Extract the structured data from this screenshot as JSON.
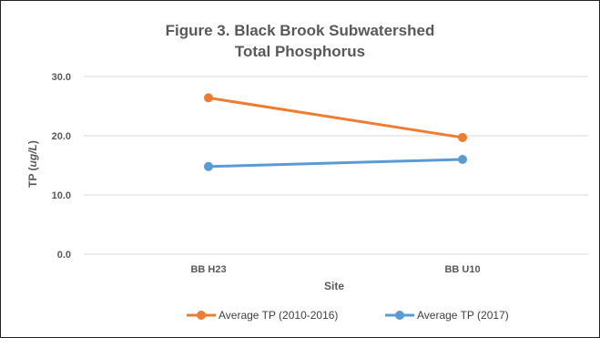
{
  "chart_data": {
    "type": "line",
    "title_line1": "Figure 3. Black Brook Subwatershed",
    "title_line2": "Total Phosphorus",
    "categories": [
      "BB H23",
      "BB U10"
    ],
    "series": [
      {
        "name": "Average TP (2010-2016)",
        "values": [
          26.4,
          19.7
        ],
        "color": "#ED7D31"
      },
      {
        "name": "Average TP (2017)",
        "values": [
          14.8,
          16.0
        ],
        "color": "#5B9BD5"
      }
    ],
    "xlabel": "Site",
    "ylabel_prefix": "TP (",
    "ylabel_unit": "ug/L",
    "ylabel_suffix": ")",
    "ylim": [
      0,
      30
    ],
    "yticks": [
      "0.0",
      "10.0",
      "20.0",
      "30.0"
    ],
    "ytick_values": [
      0,
      10,
      20,
      30
    ],
    "grid": true,
    "legend_position": "bottom"
  }
}
